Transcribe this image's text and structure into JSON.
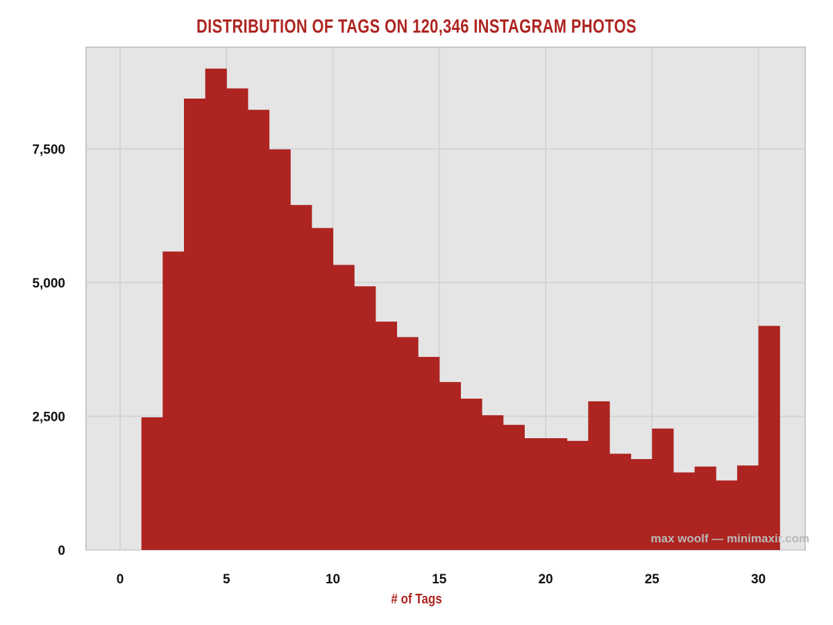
{
  "colors": {
    "bar": "#ad2420",
    "title": "#ad2420",
    "panel": "#e5e5e5",
    "panel_border": "#c8c8c8",
    "grid": "#d4d4d4",
    "tick_text": "#111111",
    "watermark": "#b9b9b9"
  },
  "watermark": "max woolf — minimaxir.com",
  "chart_data": {
    "type": "bar",
    "title": "DISTRIBUTION OF TAGS ON 120,346 INSTAGRAM PHOTOS",
    "xlabel": "# of Tags",
    "ylabel": "",
    "xlim": [
      -1.6,
      32.2
    ],
    "ylim": [
      0,
      9400
    ],
    "x_ticks": [
      0,
      5,
      10,
      15,
      20,
      25,
      30
    ],
    "x_tick_labels": [
      "0",
      "5",
      "10",
      "15",
      "20",
      "25",
      "30"
    ],
    "y_ticks": [
      0,
      2500,
      5000,
      7500
    ],
    "y_tick_labels": [
      "0",
      "2,500",
      "5,000",
      "7,500"
    ],
    "grid": true,
    "legend": "none",
    "bins": [
      {
        "x0": 1,
        "x1": 2,
        "count": 2480
      },
      {
        "x0": 2,
        "x1": 3,
        "count": 5580
      },
      {
        "x0": 3,
        "x1": 4,
        "count": 8440
      },
      {
        "x0": 4,
        "x1": 5,
        "count": 9000
      },
      {
        "x0": 5,
        "x1": 6,
        "count": 8630
      },
      {
        "x0": 6,
        "x1": 7,
        "count": 8230
      },
      {
        "x0": 7,
        "x1": 8,
        "count": 7490
      },
      {
        "x0": 8,
        "x1": 9,
        "count": 6450
      },
      {
        "x0": 9,
        "x1": 10,
        "count": 6020
      },
      {
        "x0": 10,
        "x1": 11,
        "count": 5330
      },
      {
        "x0": 11,
        "x1": 12,
        "count": 4930
      },
      {
        "x0": 12,
        "x1": 13,
        "count": 4270
      },
      {
        "x0": 13,
        "x1": 14,
        "count": 3980
      },
      {
        "x0": 14,
        "x1": 15,
        "count": 3610
      },
      {
        "x0": 15,
        "x1": 16,
        "count": 3140
      },
      {
        "x0": 16,
        "x1": 17,
        "count": 2830
      },
      {
        "x0": 17,
        "x1": 18,
        "count": 2520
      },
      {
        "x0": 18,
        "x1": 19,
        "count": 2340
      },
      {
        "x0": 19,
        "x1": 20,
        "count": 2090
      },
      {
        "x0": 20,
        "x1": 21,
        "count": 2090
      },
      {
        "x0": 21,
        "x1": 22,
        "count": 2040
      },
      {
        "x0": 22,
        "x1": 23,
        "count": 2780
      },
      {
        "x0": 23,
        "x1": 24,
        "count": 1800
      },
      {
        "x0": 24,
        "x1": 25,
        "count": 1700
      },
      {
        "x0": 25,
        "x1": 26,
        "count": 2270
      },
      {
        "x0": 26,
        "x1": 27,
        "count": 1450
      },
      {
        "x0": 27,
        "x1": 28,
        "count": 1560
      },
      {
        "x0": 28,
        "x1": 29,
        "count": 1300
      },
      {
        "x0": 29,
        "x1": 30,
        "count": 1580
      },
      {
        "x0": 30,
        "x1": 31,
        "count": 4190
      }
    ]
  }
}
